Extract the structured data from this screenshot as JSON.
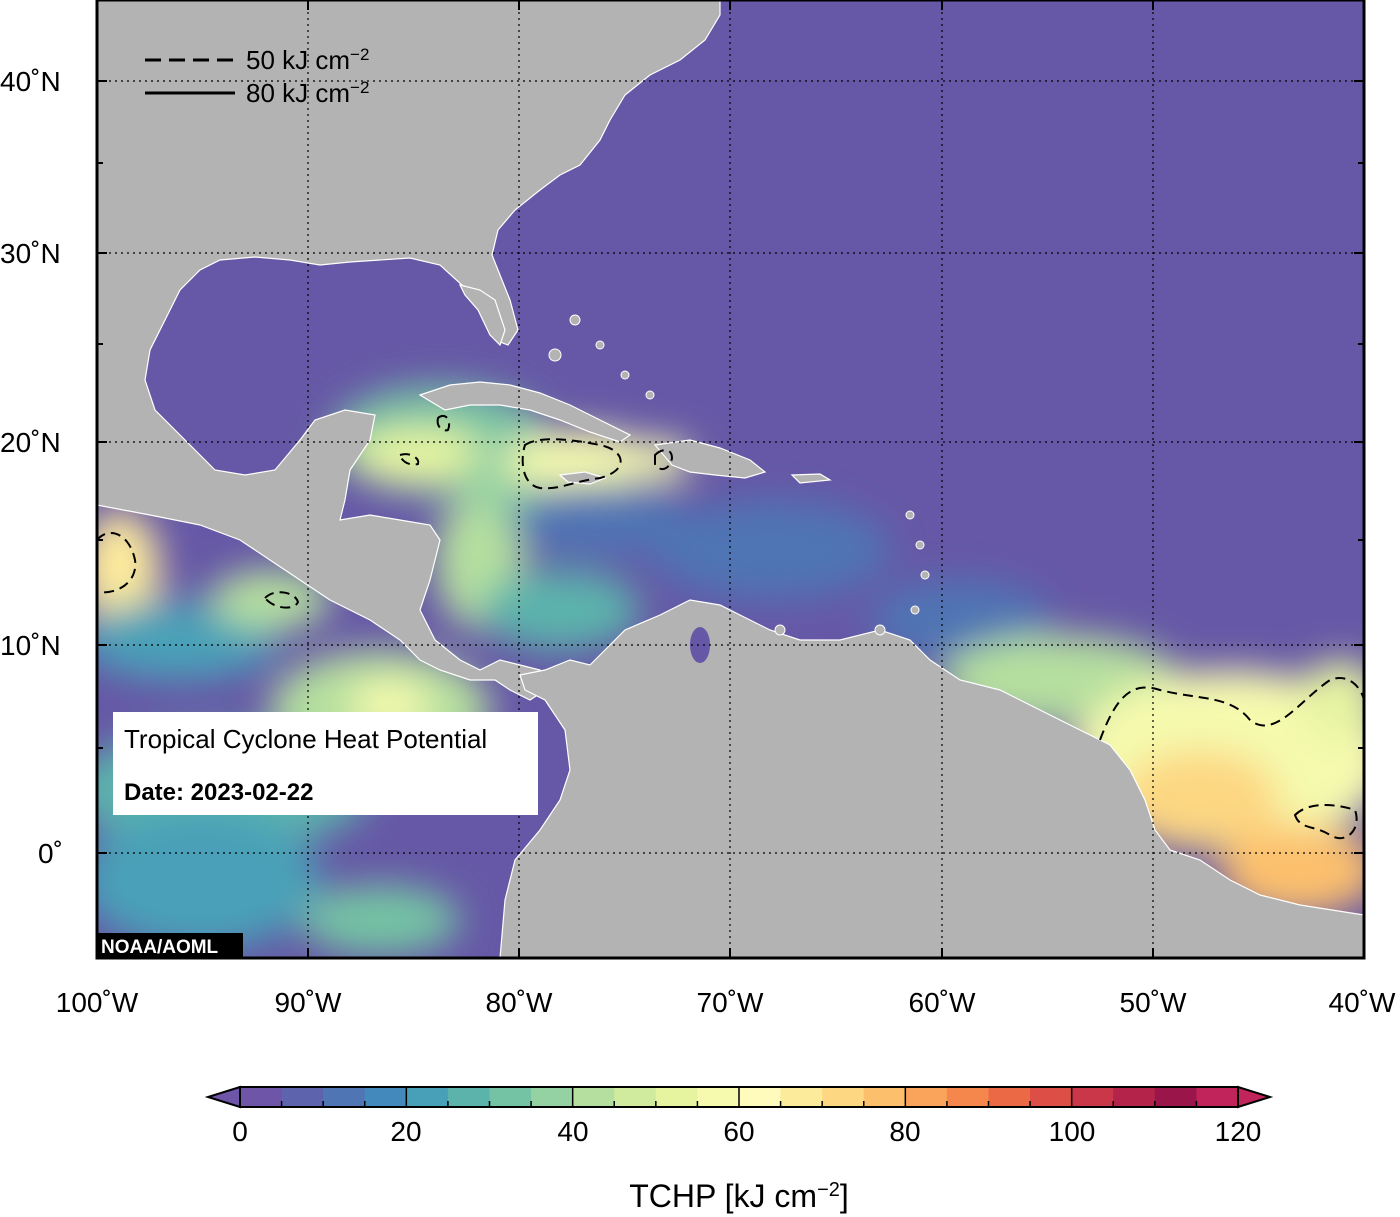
{
  "map": {
    "title": "Tropical Cyclone Heat Potential",
    "date_label": "Date: 2023-02-22",
    "credit": "NOAA/AOML",
    "lon_ticks": [
      "100˚W",
      "90˚W",
      "80˚W",
      "70˚W",
      "60˚W",
      "50˚W",
      "40˚W"
    ],
    "lat_ticks": [
      "40˚N",
      "30˚N",
      "20˚N",
      "10˚N",
      "0˚"
    ],
    "extent": {
      "lon_min": -100,
      "lon_max": -40,
      "lat_min": -5,
      "lat_max": 44
    },
    "land_color": "#b3b3b3",
    "ocean_base_color": "#6658a6",
    "legend": {
      "dashed": {
        "text": "50 kJ cm",
        "sup": "−2"
      },
      "solid": {
        "text": "80 kJ cm",
        "sup": "−2"
      }
    }
  },
  "colorbar": {
    "title": "TCHP [kJ cm",
    "title_sup": "−2",
    "title_end": "]",
    "tick_labels": [
      "0",
      "20",
      "40",
      "60",
      "80",
      "100",
      "120"
    ],
    "min": 0,
    "max": 120,
    "step": 5,
    "colors": [
      "#6e55a8",
      "#5e63ae",
      "#4f75b4",
      "#4389bb",
      "#48a0b8",
      "#5cb3ac",
      "#74c3a4",
      "#95d2a3",
      "#b5df9f",
      "#d0ea9e",
      "#e6f4a0",
      "#f5faae",
      "#fefbbd",
      "#fdeb9c",
      "#fdd782",
      "#fcc06d",
      "#faa45b",
      "#f5874d",
      "#eb6a45",
      "#dd4f46",
      "#ca3748",
      "#b3234a",
      "#9a1549",
      "#c0245a"
    ]
  },
  "chart_data": {
    "type": "heatmap",
    "variable": "TCHP",
    "units": "kJ cm−2",
    "date": "2023-02-22",
    "lon_range": [
      -100,
      -40
    ],
    "lat_range": [
      -5,
      44
    ],
    "value_range": [
      0,
      120
    ],
    "contours": [
      50,
      80
    ]
  }
}
